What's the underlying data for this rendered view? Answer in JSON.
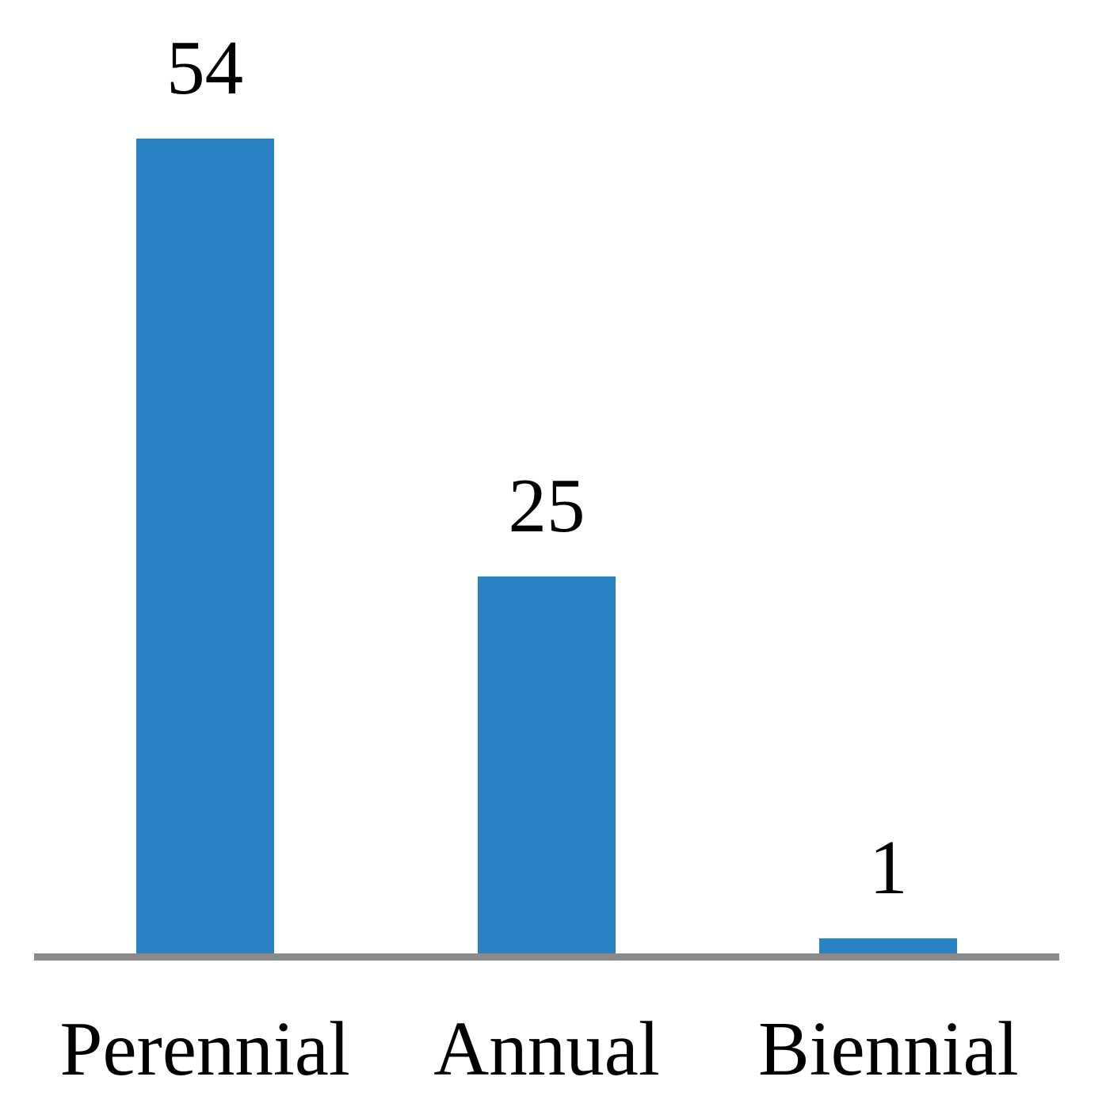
{
  "chart_data": {
    "type": "bar",
    "categories": [
      "Perennial",
      "Annual",
      "Biennial"
    ],
    "values": [
      54,
      25,
      1
    ],
    "title": "",
    "xlabel": "",
    "ylabel": "",
    "ylim": [
      0,
      54
    ],
    "grid": false,
    "legend": false,
    "value_labels_visible": true,
    "axes_visible": {
      "x": true,
      "y": false
    },
    "colors": {
      "bar": "#2A82C2",
      "axis_line": "#8A8A8A",
      "label_text": "#000000",
      "background": "#FFFFFF"
    }
  }
}
